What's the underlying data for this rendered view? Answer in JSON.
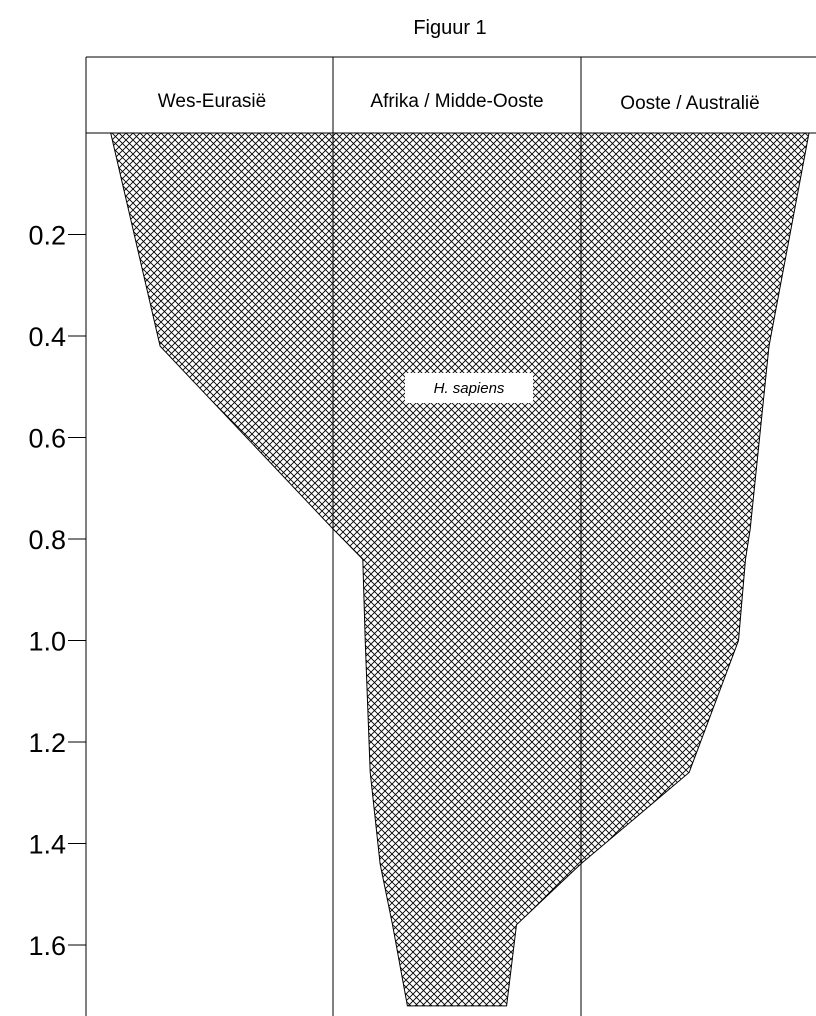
{
  "figure": {
    "title": "Figuur 1",
    "columns": [
      "Wes-Eurasië",
      "Afrika / Midde-Ooste",
      "Ooste / Australië"
    ],
    "area_label": "H. sapiens",
    "fill_pattern": "crosshatch",
    "colors": {
      "line": "#000000",
      "background": "#ffffff",
      "hatch": "#000000"
    }
  },
  "chart_data": {
    "type": "area",
    "title": "Figuur 1",
    "xlabel": "",
    "ylabel": "",
    "y_ticks": [
      "0.2",
      "0.4",
      "0.6",
      "0.8",
      "1.0",
      "1.2",
      "1.4",
      "1.6"
    ],
    "y_range": [
      0,
      1.72
    ],
    "y_direction": "downward",
    "regions": [
      "Wes-Eurasië",
      "Afrika / Midde-Ooste",
      "Ooste / Australië"
    ],
    "series": [
      {
        "name": "H. sapiens",
        "y": [
          0.0,
          0.42,
          0.78,
          0.84,
          1.0,
          1.26,
          1.44,
          1.56,
          1.72
        ],
        "left_boundary": [
          0.1,
          0.3,
          1.0,
          1.12,
          1.13,
          1.15,
          1.19,
          1.24,
          1.3
        ],
        "right_boundary": [
          2.97,
          2.8,
          2.72,
          2.7,
          2.67,
          2.46,
          2.0,
          1.74,
          1.7
        ]
      }
    ],
    "grid": false,
    "legend": "none"
  }
}
